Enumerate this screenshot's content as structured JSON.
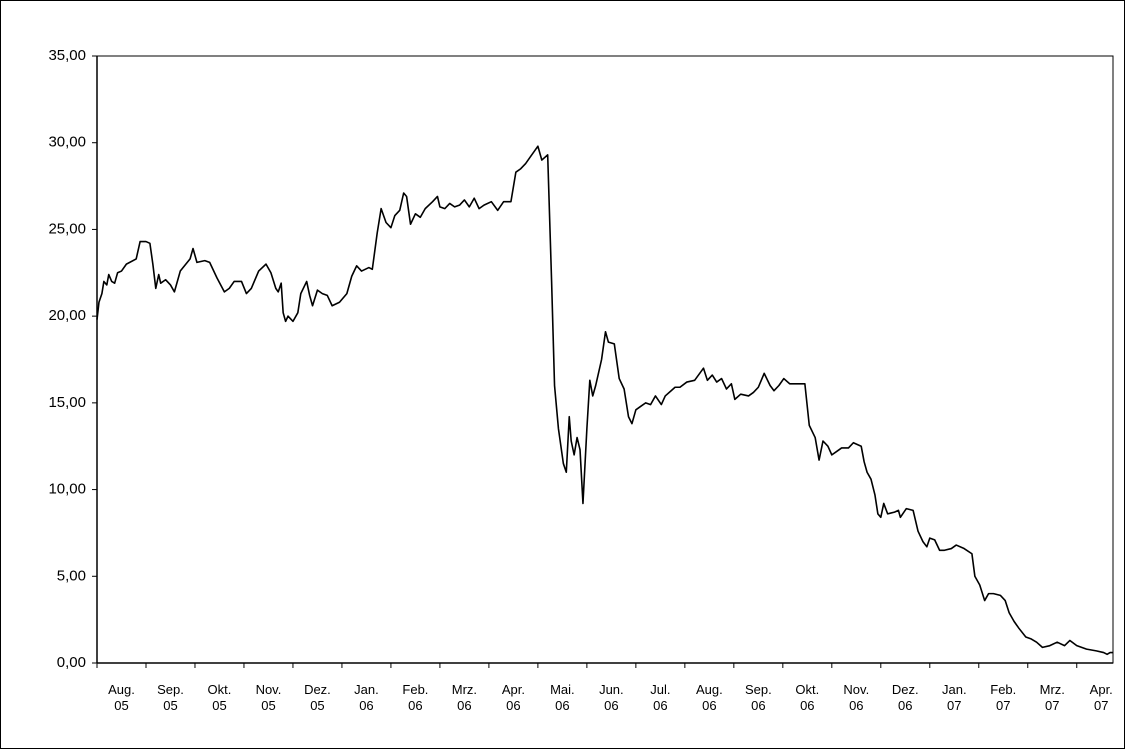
{
  "chart_data": {
    "type": "line",
    "color": "#000000",
    "xlim": [
      0,
      20.74
    ],
    "ylim": [
      0,
      35
    ],
    "yticks": [
      {
        "value": 0,
        "label": "0,00"
      },
      {
        "value": 5,
        "label": "5,00"
      },
      {
        "value": 10,
        "label": "10,00"
      },
      {
        "value": 15,
        "label": "15,00"
      },
      {
        "value": 20,
        "label": "20,00"
      },
      {
        "value": 25,
        "label": "25,00"
      },
      {
        "value": 30,
        "label": "30,00"
      },
      {
        "value": 35,
        "label": "35,00"
      }
    ],
    "xticks": [
      {
        "value": 0,
        "label": "Aug. 05"
      },
      {
        "value": 1,
        "label": "Sep. 05"
      },
      {
        "value": 2,
        "label": "Okt. 05"
      },
      {
        "value": 3,
        "label": "Nov. 05"
      },
      {
        "value": 4,
        "label": "Dez. 05"
      },
      {
        "value": 5,
        "label": "Jan. 06"
      },
      {
        "value": 6,
        "label": "Feb. 06"
      },
      {
        "value": 7,
        "label": "Mrz. 06"
      },
      {
        "value": 8,
        "label": "Apr. 06"
      },
      {
        "value": 9,
        "label": "Mai. 06"
      },
      {
        "value": 10,
        "label": "Jun. 06"
      },
      {
        "value": 11,
        "label": "Jul. 06"
      },
      {
        "value": 12,
        "label": "Aug. 06"
      },
      {
        "value": 13,
        "label": "Sep. 06"
      },
      {
        "value": 14,
        "label": "Okt. 06"
      },
      {
        "value": 15,
        "label": "Nov. 06"
      },
      {
        "value": 16,
        "label": "Dez. 06"
      },
      {
        "value": 17,
        "label": "Jan. 07"
      },
      {
        "value": 18,
        "label": "Feb. 07"
      },
      {
        "value": 19,
        "label": "Mrz. 07"
      },
      {
        "value": 20,
        "label": "Apr. 07"
      }
    ],
    "x": [
      0,
      0.04,
      0.1,
      0.14,
      0.2,
      0.24,
      0.3,
      0.36,
      0.42,
      0.5,
      0.6,
      0.8,
      0.88,
      1.0,
      1.08,
      1.14,
      1.2,
      1.26,
      1.3,
      1.4,
      1.5,
      1.58,
      1.7,
      1.9,
      1.96,
      2.04,
      2.2,
      2.3,
      2.45,
      2.6,
      2.7,
      2.8,
      2.95,
      3.05,
      3.15,
      3.3,
      3.45,
      3.55,
      3.65,
      3.7,
      3.76,
      3.8,
      3.85,
      3.9,
      4.0,
      4.1,
      4.16,
      4.28,
      4.34,
      4.4,
      4.5,
      4.6,
      4.7,
      4.8,
      4.95,
      5.1,
      5.2,
      5.3,
      5.4,
      5.55,
      5.62,
      5.72,
      5.8,
      5.9,
      6.0,
      6.08,
      6.18,
      6.26,
      6.32,
      6.4,
      6.5,
      6.6,
      6.7,
      6.85,
      6.95,
      7.0,
      7.1,
      7.2,
      7.3,
      7.4,
      7.5,
      7.6,
      7.7,
      7.8,
      7.9,
      8.05,
      8.18,
      8.3,
      8.45,
      8.55,
      8.65,
      8.75,
      8.85,
      8.95,
      9.0,
      9.08,
      9.2,
      9.28,
      9.34,
      9.42,
      9.52,
      9.58,
      9.64,
      9.68,
      9.74,
      9.8,
      9.86,
      9.92,
      10.0,
      10.06,
      10.12,
      10.18,
      10.3,
      10.38,
      10.44,
      10.56,
      10.66,
      10.76,
      10.85,
      10.92,
      11.0,
      11.1,
      11.2,
      11.3,
      11.4,
      11.52,
      11.6,
      11.72,
      11.8,
      11.9,
      12.04,
      12.2,
      12.38,
      12.46,
      12.56,
      12.65,
      12.75,
      12.85,
      12.95,
      13.02,
      13.14,
      13.3,
      13.4,
      13.5,
      13.62,
      13.74,
      13.82,
      13.92,
      14.02,
      14.14,
      14.3,
      14.45,
      14.54,
      14.66,
      14.74,
      14.82,
      14.92,
      15.0,
      15.1,
      15.2,
      15.34,
      15.44,
      15.6,
      15.66,
      15.72,
      15.8,
      15.88,
      15.94,
      16.0,
      16.06,
      16.14,
      16.28,
      16.36,
      16.4,
      16.52,
      16.66,
      16.76,
      16.86,
      16.94,
      17.0,
      17.1,
      17.2,
      17.3,
      17.44,
      17.54,
      17.7,
      17.86,
      17.92,
      18.02,
      18.12,
      18.2,
      18.3,
      18.44,
      18.54,
      18.62,
      18.72,
      18.82,
      18.96,
      19.06,
      19.18,
      19.3,
      19.45,
      19.6,
      19.75,
      19.86,
      20.0,
      20.2,
      20.4,
      20.55,
      20.62,
      20.68,
      20.74
    ],
    "values": [
      19.8,
      20.8,
      21.3,
      22.0,
      21.8,
      22.4,
      22.0,
      21.9,
      22.5,
      22.6,
      23.0,
      23.3,
      24.3,
      24.3,
      24.2,
      23.0,
      21.6,
      22.4,
      21.9,
      22.1,
      21.8,
      21.4,
      22.6,
      23.3,
      23.9,
      23.1,
      23.2,
      23.1,
      22.2,
      21.4,
      21.6,
      22.0,
      22.0,
      21.3,
      21.6,
      22.6,
      23.0,
      22.5,
      21.6,
      21.4,
      21.9,
      20.2,
      19.7,
      20.0,
      19.7,
      20.2,
      21.3,
      22.0,
      21.2,
      20.6,
      21.5,
      21.3,
      21.2,
      20.6,
      20.8,
      21.3,
      22.3,
      22.9,
      22.6,
      22.8,
      22.7,
      24.8,
      26.2,
      25.4,
      25.1,
      25.8,
      26.1,
      27.1,
      26.9,
      25.3,
      25.9,
      25.7,
      26.2,
      26.6,
      26.9,
      26.3,
      26.2,
      26.5,
      26.3,
      26.4,
      26.7,
      26.3,
      26.8,
      26.2,
      26.4,
      26.6,
      26.1,
      26.6,
      26.6,
      28.3,
      28.5,
      28.8,
      29.2,
      29.6,
      29.8,
      29.0,
      29.3,
      22.0,
      16.0,
      13.5,
      11.5,
      11.0,
      14.2,
      12.8,
      12.0,
      13.0,
      12.3,
      9.2,
      13.5,
      16.3,
      15.4,
      16.0,
      17.5,
      19.1,
      18.5,
      18.4,
      16.4,
      15.8,
      14.2,
      13.8,
      14.6,
      14.8,
      15.0,
      14.9,
      15.4,
      14.9,
      15.4,
      15.7,
      15.9,
      15.9,
      16.2,
      16.3,
      17.0,
      16.3,
      16.6,
      16.2,
      16.4,
      15.8,
      16.1,
      15.2,
      15.5,
      15.4,
      15.6,
      15.9,
      16.7,
      16.0,
      15.7,
      16.0,
      16.4,
      16.1,
      16.1,
      16.1,
      13.7,
      13.0,
      11.7,
      12.8,
      12.5,
      12.0,
      12.2,
      12.4,
      12.4,
      12.7,
      12.5,
      11.6,
      11.0,
      10.6,
      9.7,
      8.6,
      8.4,
      9.2,
      8.6,
      8.7,
      8.8,
      8.4,
      8.9,
      8.8,
      7.6,
      7.0,
      6.7,
      7.2,
      7.1,
      6.5,
      6.5,
      6.6,
      6.8,
      6.6,
      6.3,
      5.0,
      4.5,
      3.6,
      4.0,
      4.0,
      3.9,
      3.6,
      2.9,
      2.4,
      2.0,
      1.5,
      1.4,
      1.2,
      0.9,
      1.0,
      1.2,
      1.0,
      1.3,
      1.0,
      0.8,
      0.7,
      0.6,
      0.5,
      0.6,
      0.6
    ]
  }
}
